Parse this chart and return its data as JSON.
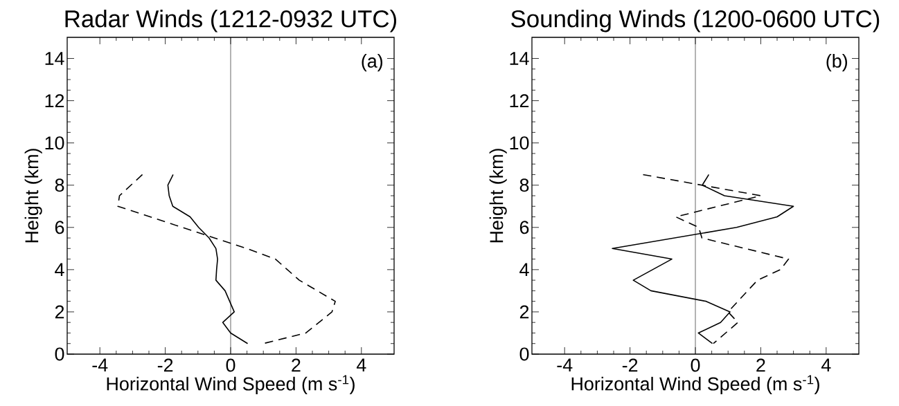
{
  "chart_data": [
    {
      "type": "line",
      "title": "Radar Winds (1212-0932 UTC)",
      "xlabel": "Horizontal Wind Speed (m s$^{-1}$)",
      "ylabel": "Height (km)",
      "annotations": [
        "(a)"
      ],
      "xlim": [
        -5,
        5
      ],
      "ylim": [
        0,
        15
      ],
      "xticks": [
        -4,
        -2,
        0,
        2,
        4
      ],
      "yticks": [
        0,
        2,
        4,
        6,
        8,
        10,
        12,
        14
      ],
      "ref_lines": [
        {
          "axis": "x",
          "value": 0,
          "color": "#000000"
        }
      ],
      "series": [
        {
          "color": "#000000",
          "line_style": "solid",
          "x": [
            -1.76,
            -1.92,
            -1.88,
            -1.77,
            -1.24,
            -0.98,
            -0.66,
            -0.45,
            -0.4,
            -0.43,
            -0.45,
            -0.17,
            0.11,
            -0.24,
            0,
            0.52
          ],
          "values": [
            8.5,
            8,
            7.5,
            7,
            6.5,
            6,
            5.5,
            5,
            4.5,
            4,
            3.5,
            3,
            2,
            1.5,
            1,
            0.5
          ]
        },
        {
          "color": "#000000",
          "line_style": "dashed",
          "x": [
            -2.7,
            -3.4,
            -3.45,
            -0.5,
            0.5,
            1.37,
            2.1,
            3.2,
            3.1,
            2.3,
            1.0
          ],
          "values": [
            8.5,
            7.5,
            7,
            5.5,
            5,
            4.5,
            3.5,
            2.5,
            2,
            1,
            0.5
          ]
        }
      ]
    },
    {
      "type": "line",
      "title": "Sounding Winds (1200-0600 UTC)",
      "xlabel": "Horizontal Wind Speed (m s$^{-1}$)",
      "ylabel": "Height (km)",
      "annotations": [
        "(b)"
      ],
      "xlim": [
        -5,
        5
      ],
      "ylim": [
        0,
        15
      ],
      "xticks": [
        -4,
        -2,
        0,
        2,
        4
      ],
      "yticks": [
        0,
        2,
        4,
        6,
        8,
        10,
        12,
        14
      ],
      "ref_lines": [
        {
          "axis": "x",
          "value": 0,
          "color": "#000000"
        }
      ],
      "series": [
        {
          "color": "#000000",
          "line_style": "solid",
          "x": [
            0.41,
            0.21,
            0.89,
            3.0,
            2.5,
            1.26,
            -2.54,
            -0.72,
            -1.9,
            -1.36,
            0.33,
            1.06,
            0.77,
            0.09,
            0.52
          ],
          "values": [
            8.5,
            8,
            7.5,
            7,
            6.5,
            6,
            5,
            4.5,
            3.5,
            3,
            2.5,
            2,
            1.5,
            1,
            0.5
          ]
        },
        {
          "color": "#000000",
          "line_style": "dashed",
          "x": [
            -1.6,
            2.0,
            -0.6,
            0.1,
            0.2,
            2.85,
            2.6,
            1.9,
            1.0,
            1.3,
            0.55
          ],
          "values": [
            8.5,
            7.5,
            6.5,
            6,
            5.5,
            4.5,
            4,
            3.5,
            2,
            1.5,
            0.5
          ]
        }
      ]
    }
  ]
}
